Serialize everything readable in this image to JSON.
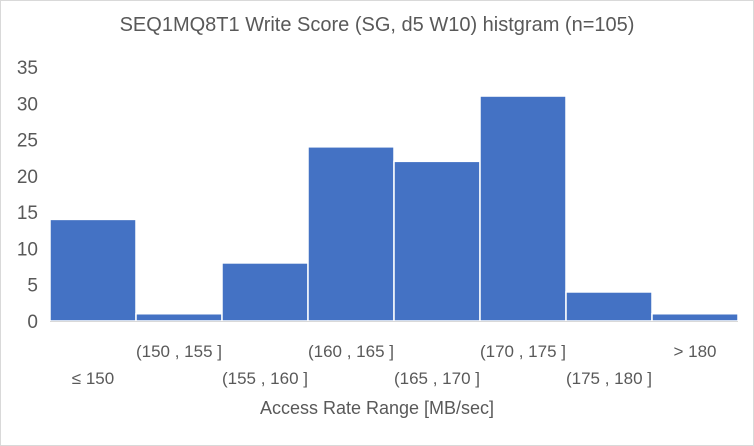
{
  "chart_data": {
    "type": "bar",
    "title": "SEQ1MQ8T1 Write Score (SG, d5 W10) histgram (n=105)",
    "xlabel": "Access Rate Range [MB/sec]",
    "ylabel": "",
    "categories": [
      "≤ 150",
      "(150 , 155 ]",
      "(155 , 160 ]",
      "(160 , 165 ]",
      "(165 , 170 ]",
      "(170 , 175 ]",
      "(175 , 180 ]",
      "> 180"
    ],
    "values": [
      14,
      1,
      8,
      24,
      22,
      31,
      4,
      1
    ],
    "ylim": [
      0,
      35
    ],
    "yticks": [
      0,
      5,
      10,
      15,
      20,
      25,
      30,
      35
    ],
    "grid": false,
    "legend": "none",
    "bar_color": "#4472c4"
  }
}
